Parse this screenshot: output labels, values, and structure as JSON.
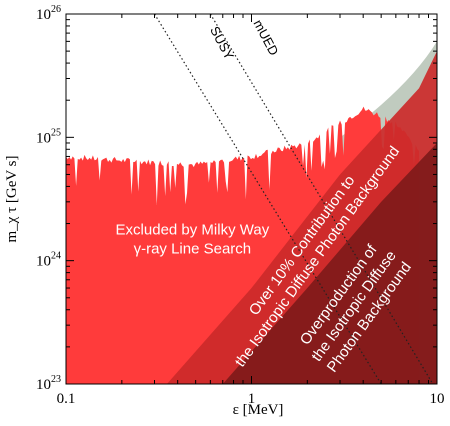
{
  "chart_data": {
    "type": "area",
    "xlabel": "ε [MeV]",
    "ylabel": "m_χ τ [GeV s]",
    "xscale": "log",
    "yscale": "log",
    "xlim": [
      0.1,
      10
    ],
    "ylim": [
      1e+23,
      1e+26
    ],
    "x_ticks": [
      {
        "value": 0.1,
        "label": "0.1"
      },
      {
        "value": 1,
        "label": "1"
      },
      {
        "value": 10,
        "label": "10"
      }
    ],
    "y_ticks": [
      {
        "value": 1e+23,
        "base": "10",
        "exp": "23"
      },
      {
        "value": 1e+24,
        "base": "10",
        "exp": "24"
      },
      {
        "value": 1e+25,
        "base": "10",
        "exp": "25"
      },
      {
        "value": 1e+26,
        "base": "10",
        "exp": "26"
      }
    ],
    "colors": {
      "milky_way": "#ff3b3b",
      "isotropic_10pct": "#cc2a2a",
      "isotropic_over": "#7f1a1a",
      "grey_region": "#c0cbbf",
      "dark_grey_region": "#7f8a80"
    },
    "regions": [
      {
        "label_lines": [
          "Excluded by Milky Way",
          "γ-ray Line Search"
        ],
        "boundary": [
          [
            0.1,
            7e+24
          ],
          [
            0.2,
            6.5e+24
          ],
          [
            0.5,
            6e+24
          ],
          [
            1,
            7e+24
          ],
          [
            2,
            9e+24
          ],
          [
            3,
            1.3e+25
          ],
          [
            4,
            1.7e+25
          ],
          [
            5,
            1.5e+25
          ],
          [
            6,
            1.3e+25
          ],
          [
            8,
            8e+24
          ]
        ]
      },
      {
        "label_lines": [
          "Over 10% Contribution to",
          "the Isotropic Diffuse Photon Background"
        ],
        "boundary": [
          [
            0.35,
            1e+23
          ],
          [
            1,
            6e+23
          ],
          [
            3,
            5e+24
          ],
          [
            8,
            2.5e+25
          ],
          [
            10,
            5e+25
          ]
        ]
      },
      {
        "label_lines": [
          "Overproduction of",
          "the Isotropic Diffuse",
          "Photon Background"
        ],
        "boundary": [
          [
            0.7,
            1e+23
          ],
          [
            2,
            6e+23
          ],
          [
            5,
            3e+24
          ],
          [
            10,
            9e+24
          ]
        ]
      }
    ],
    "series": [
      {
        "name": "SUSY",
        "x": [
          0.3,
          5
        ],
        "y": [
          1e+26,
          1e+23
        ]
      },
      {
        "name": "mUED",
        "x": [
          0.6,
          9.5
        ],
        "y": [
          1e+26,
          1e+23
        ]
      }
    ],
    "grid": false
  }
}
